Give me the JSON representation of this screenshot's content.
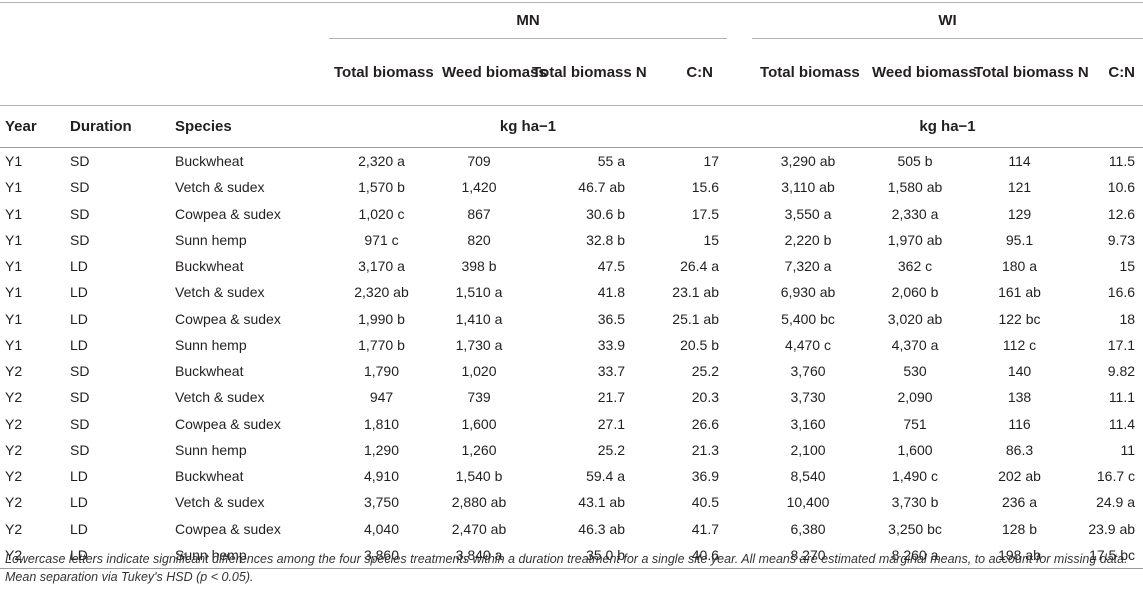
{
  "header": {
    "sites": [
      "MN",
      "WI"
    ],
    "metrics": [
      "Total biomass",
      "Weed biomass",
      "Total biomass N",
      "C:N"
    ],
    "row_labels": {
      "year": "Year",
      "duration": "Duration",
      "species": "Species"
    },
    "unit": "kg ha−1"
  },
  "rows": [
    {
      "year": "Y1",
      "duration": "SD",
      "species": "Buckwheat",
      "mn": [
        "2,320 a",
        "709",
        "55 a",
        "17"
      ],
      "wi": [
        "3,290 ab",
        "505 b",
        "114",
        "11.5"
      ]
    },
    {
      "year": "Y1",
      "duration": "SD",
      "species": "Vetch & sudex",
      "mn": [
        "1,570 b",
        "1,420",
        "46.7 ab",
        "15.6"
      ],
      "wi": [
        "3,110 ab",
        "1,580 ab",
        "121",
        "10.6"
      ]
    },
    {
      "year": "Y1",
      "duration": "SD",
      "species": "Cowpea & sudex",
      "mn": [
        "1,020 c",
        "867",
        "30.6 b",
        "17.5"
      ],
      "wi": [
        "3,550 a",
        "2,330 a",
        "129",
        "12.6"
      ]
    },
    {
      "year": "Y1",
      "duration": "SD",
      "species": "Sunn hemp",
      "mn": [
        "971 c",
        "820",
        "32.8 b",
        "15"
      ],
      "wi": [
        "2,220 b",
        "1,970 ab",
        "95.1",
        "9.73"
      ]
    },
    {
      "year": "Y1",
      "duration": "LD",
      "species": "Buckwheat",
      "mn": [
        "3,170 a",
        "398 b",
        "47.5",
        "26.4 a"
      ],
      "wi": [
        "7,320 a",
        "362 c",
        "180 a",
        "15"
      ]
    },
    {
      "year": "Y1",
      "duration": "LD",
      "species": "Vetch & sudex",
      "mn": [
        "2,320 ab",
        "1,510 a",
        "41.8",
        "23.1 ab"
      ],
      "wi": [
        "6,930 ab",
        "2,060 b",
        "161 ab",
        "16.6"
      ]
    },
    {
      "year": "Y1",
      "duration": "LD",
      "species": "Cowpea & sudex",
      "mn": [
        "1,990 b",
        "1,410 a",
        "36.5",
        "25.1 ab"
      ],
      "wi": [
        "5,400 bc",
        "3,020 ab",
        "122 bc",
        "18"
      ]
    },
    {
      "year": "Y1",
      "duration": "LD",
      "species": "Sunn hemp",
      "mn": [
        "1,770 b",
        "1,730 a",
        "33.9",
        "20.5 b"
      ],
      "wi": [
        "4,470 c",
        "4,370 a",
        "112 c",
        "17.1"
      ]
    },
    {
      "year": "Y2",
      "duration": "SD",
      "species": "Buckwheat",
      "mn": [
        "1,790",
        "1,020",
        "33.7",
        "25.2"
      ],
      "wi": [
        "3,760",
        "530",
        "140",
        "9.82"
      ]
    },
    {
      "year": "Y2",
      "duration": "SD",
      "species": "Vetch & sudex",
      "mn": [
        "947",
        "739",
        "21.7",
        "20.3"
      ],
      "wi": [
        "3,730",
        "2,090",
        "138",
        "11.1"
      ]
    },
    {
      "year": "Y2",
      "duration": "SD",
      "species": "Cowpea & sudex",
      "mn": [
        "1,810",
        "1,600",
        "27.1",
        "26.6"
      ],
      "wi": [
        "3,160",
        "751",
        "116",
        "11.4"
      ]
    },
    {
      "year": "Y2",
      "duration": "SD",
      "species": "Sunn hemp",
      "mn": [
        "1,290",
        "1,260",
        "25.2",
        "21.3"
      ],
      "wi": [
        "2,100",
        "1,600",
        "86.3",
        "11"
      ]
    },
    {
      "year": "Y2",
      "duration": "LD",
      "species": "Buckwheat",
      "mn": [
        "4,910",
        "1,540 b",
        "59.4 a",
        "36.9"
      ],
      "wi": [
        "8,540",
        "1,490 c",
        "202 ab",
        "16.7 c"
      ]
    },
    {
      "year": "Y2",
      "duration": "LD",
      "species": "Vetch & sudex",
      "mn": [
        "3,750",
        "2,880 ab",
        "43.1 ab",
        "40.5"
      ],
      "wi": [
        "10,400",
        "3,730 b",
        "236 a",
        "24.9 a"
      ]
    },
    {
      "year": "Y2",
      "duration": "LD",
      "species": "Cowpea & sudex",
      "mn": [
        "4,040",
        "2,470 ab",
        "46.3 ab",
        "41.7"
      ],
      "wi": [
        "6,380",
        "3,250 bc",
        "128 b",
        "23.9 ab"
      ]
    },
    {
      "year": "Y2",
      "duration": "LD",
      "species": "Sunn hemp",
      "mn": [
        "3,860",
        "3,840 a",
        "35.0 b",
        "40.6"
      ],
      "wi": [
        "8,270",
        "8,260 a",
        "198 ab",
        "17.5 bc"
      ]
    }
  ],
  "footnote": "Lowercase letters indicate significant differences among the four species treatments within a duration treatment for a single site year. All means are estimated marginal means, to account for missing data. Mean separation via Tukey's HSD (p < 0.05)."
}
